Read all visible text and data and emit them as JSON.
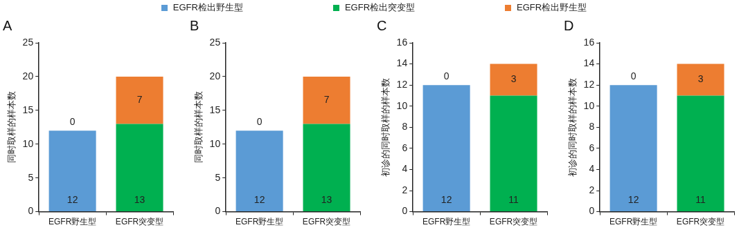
{
  "chart_data": [
    {
      "type": "bar",
      "title": "A",
      "ylabel": "同时取样的样本数",
      "categories": [
        "EGFR野生型",
        "EGFR突变型"
      ],
      "stacked": true,
      "data_labels": true,
      "legend": "top",
      "ylim": [
        0,
        25
      ],
      "yticks": [
        0,
        5,
        10,
        15,
        20,
        25
      ],
      "grid": false,
      "series": [
        {
          "name": "EGFR检出野生型",
          "color": "#5b9bd5",
          "values": [
            12,
            null
          ]
        },
        {
          "name": "EGFR检出突变型",
          "color": "#00b050",
          "values": [
            null,
            13
          ]
        },
        {
          "name": "EGFR检出野生型",
          "color": "#ed7d31",
          "values": [
            0,
            7
          ]
        }
      ]
    },
    {
      "type": "bar",
      "title": "B",
      "ylabel": "同时取样的样本数",
      "categories": [
        "EGFR野生型",
        "EGFR突变型"
      ],
      "stacked": true,
      "data_labels": true,
      "ylim": [
        0,
        25
      ],
      "yticks": [
        0,
        5,
        10,
        15,
        20,
        25
      ],
      "grid": false,
      "series": [
        {
          "color": "#5b9bd5",
          "values": [
            12,
            null
          ]
        },
        {
          "color": "#00b050",
          "values": [
            null,
            13
          ]
        },
        {
          "color": "#ed7d31",
          "values": [
            0,
            7
          ]
        }
      ]
    },
    {
      "type": "bar",
      "title": "C",
      "ylabel": "初诊的同时取样的样本数",
      "categories": [
        "EGFR野生型",
        "EGFR突变型"
      ],
      "stacked": true,
      "data_labels": true,
      "ylim": [
        0,
        16
      ],
      "yticks": [
        0,
        2,
        4,
        6,
        8,
        10,
        12,
        14,
        16
      ],
      "grid": false,
      "series": [
        {
          "color": "#5b9bd5",
          "values": [
            12,
            null
          ]
        },
        {
          "color": "#00b050",
          "values": [
            null,
            11
          ]
        },
        {
          "color": "#ed7d31",
          "values": [
            0,
            3
          ]
        }
      ]
    },
    {
      "type": "bar",
      "title": "D",
      "ylabel": "初诊的同时取样的样本数",
      "categories": [
        "EGFR野生型",
        "EGFR突变型"
      ],
      "stacked": true,
      "data_labels": true,
      "ylim": [
        0,
        16
      ],
      "yticks": [
        0,
        2,
        4,
        6,
        8,
        10,
        12,
        14,
        16
      ],
      "grid": false,
      "series": [
        {
          "color": "#5b9bd5",
          "values": [
            12,
            null
          ]
        },
        {
          "color": "#00b050",
          "values": [
            null,
            11
          ]
        },
        {
          "color": "#ed7d31",
          "values": [
            0,
            3
          ]
        }
      ]
    }
  ]
}
